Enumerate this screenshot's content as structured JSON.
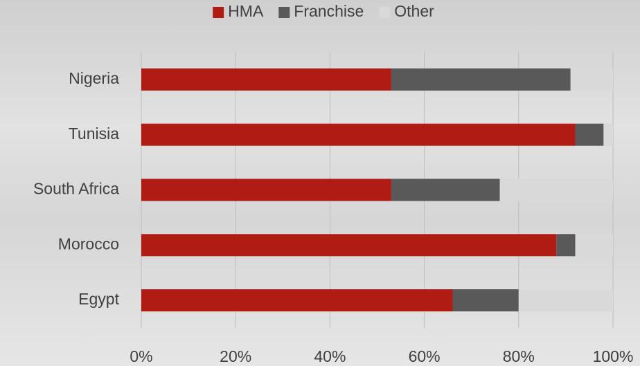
{
  "chart_data": {
    "type": "stacked-bar-horizontal",
    "categories": [
      "Nigeria",
      "Tunisia",
      "South Africa",
      "Morocco",
      "Egypt"
    ],
    "series": [
      {
        "name": "HMA",
        "color": "#b01c14",
        "values": [
          53,
          92,
          53,
          88,
          66
        ]
      },
      {
        "name": "Franchise",
        "color": "#595959",
        "values": [
          38,
          6,
          23,
          4,
          14
        ]
      },
      {
        "name": "Other",
        "color": "#d9d9d9",
        "values": [
          9,
          2,
          24,
          8,
          20
        ]
      }
    ],
    "xlim": [
      0,
      100
    ],
    "xticks": [
      {
        "value": 0,
        "label": "0%"
      },
      {
        "value": 20,
        "label": "20%"
      },
      {
        "value": 40,
        "label": "40%"
      },
      {
        "value": 60,
        "label": "60%"
      },
      {
        "value": 80,
        "label": "80%"
      },
      {
        "value": 100,
        "label": "100%"
      }
    ],
    "grid": true,
    "legend": "top"
  }
}
